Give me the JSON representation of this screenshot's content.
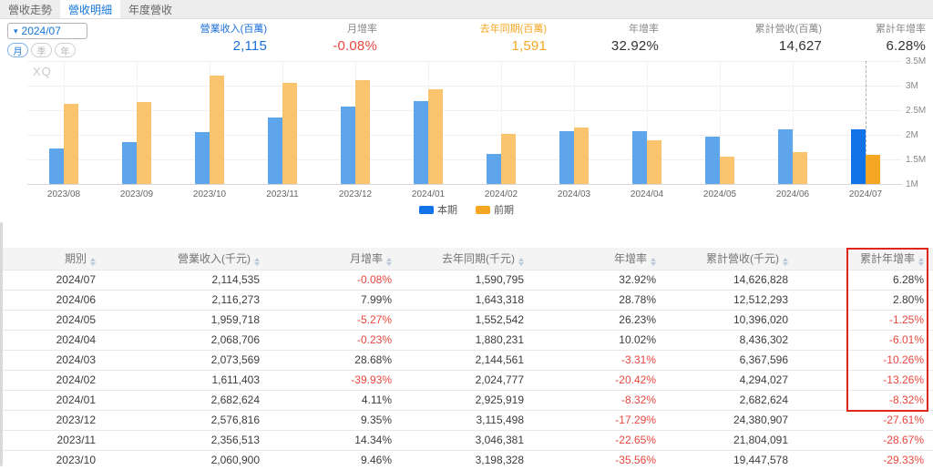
{
  "tabs": [
    {
      "label": "營收走勢",
      "active": false
    },
    {
      "label": "營收明細",
      "active": true
    },
    {
      "label": "年度營收",
      "active": false
    }
  ],
  "toolbar": {
    "period": "2024/07",
    "freq_options": [
      "月",
      "季",
      "年"
    ],
    "freq_active_index": 0
  },
  "stats": [
    {
      "label": "營業收入(百萬)",
      "value": "2,115",
      "label_color": "#1b6fd8",
      "value_color": "#1b6fd8"
    },
    {
      "label": "月增率",
      "value": "-0.08%",
      "label_color": "#888888",
      "value_color": "#e8473e"
    },
    {
      "label": "去年同期(百萬)",
      "value": "1,591",
      "label_color": "#f5a623",
      "value_color": "#f5a623"
    },
    {
      "label": "年增率",
      "value": "32.92%",
      "label_color": "#888888",
      "value_color": "#333333"
    },
    {
      "label": "累計營收(百萬)",
      "value": "14,627",
      "label_color": "#888888",
      "value_color": "#333333"
    },
    {
      "label": "累計年增率",
      "value": "6.28%",
      "label_color": "#888888",
      "value_color": "#333333"
    }
  ],
  "chart_data": {
    "type": "bar",
    "watermark": "XQ",
    "categories": [
      "2023/08",
      "2023/09",
      "2023/10",
      "2023/11",
      "2023/12",
      "2024/01",
      "2024/02",
      "2024/03",
      "2024/04",
      "2024/05",
      "2024/06",
      "2024/07"
    ],
    "series": [
      {
        "name": "本期",
        "color": "#5fa5ec",
        "selected_color": "#1273e8",
        "values": [
          1.72,
          1.86,
          2.06,
          2.36,
          2.58,
          2.68,
          1.61,
          2.07,
          2.07,
          1.96,
          2.12,
          2.11
        ]
      },
      {
        "name": "前期",
        "color": "#f9c46d",
        "selected_color": "#f5a623",
        "values": [
          2.63,
          2.67,
          3.2,
          3.05,
          3.12,
          2.93,
          2.02,
          2.14,
          1.88,
          1.55,
          1.64,
          1.59
        ]
      }
    ],
    "selected_index": 11,
    "unit": "百萬",
    "yticks": [
      "3.5M",
      "3M",
      "2.5M",
      "2M",
      "1.5M",
      "1M"
    ],
    "ylim": [
      1,
      3.5
    ],
    "grid": true,
    "legend_position": "bottom"
  },
  "table": {
    "columns": [
      "期別",
      "營業收入(千元)",
      "月增率",
      "去年同期(千元)",
      "年增率",
      "累計營收(千元)",
      "累計年增率"
    ],
    "rows": [
      [
        "2024/07",
        "2,114,535",
        "-0.08%",
        "1,590,795",
        "32.92%",
        "14,626,828",
        "6.28%"
      ],
      [
        "2024/06",
        "2,116,273",
        "7.99%",
        "1,643,318",
        "28.78%",
        "12,512,293",
        "2.80%"
      ],
      [
        "2024/05",
        "1,959,718",
        "-5.27%",
        "1,552,542",
        "26.23%",
        "10,396,020",
        "-1.25%"
      ],
      [
        "2024/04",
        "2,068,706",
        "-0.23%",
        "1,880,231",
        "10.02%",
        "8,436,302",
        "-6.01%"
      ],
      [
        "2024/03",
        "2,073,569",
        "28.68%",
        "2,144,561",
        "-3.31%",
        "6,367,596",
        "-10.26%"
      ],
      [
        "2024/02",
        "1,611,403",
        "-39.93%",
        "2,024,777",
        "-20.42%",
        "4,294,027",
        "-13.26%"
      ],
      [
        "2024/01",
        "2,682,624",
        "4.11%",
        "2,925,919",
        "-8.32%",
        "2,682,624",
        "-8.32%"
      ],
      [
        "2023/12",
        "2,576,816",
        "9.35%",
        "3,115,498",
        "-17.29%",
        "24,380,907",
        "-27.61%"
      ],
      [
        "2023/11",
        "2,356,513",
        "14.34%",
        "3,046,381",
        "-22.65%",
        "21,804,091",
        "-28.67%"
      ],
      [
        "2023/10",
        "2,060,900",
        "9.46%",
        "3,198,328",
        "-35.56%",
        "19,447,578",
        "-29.33%"
      ]
    ],
    "highlight": {
      "column": "累計年增率",
      "rows_spanned": 7,
      "color": "#e1251b"
    }
  }
}
